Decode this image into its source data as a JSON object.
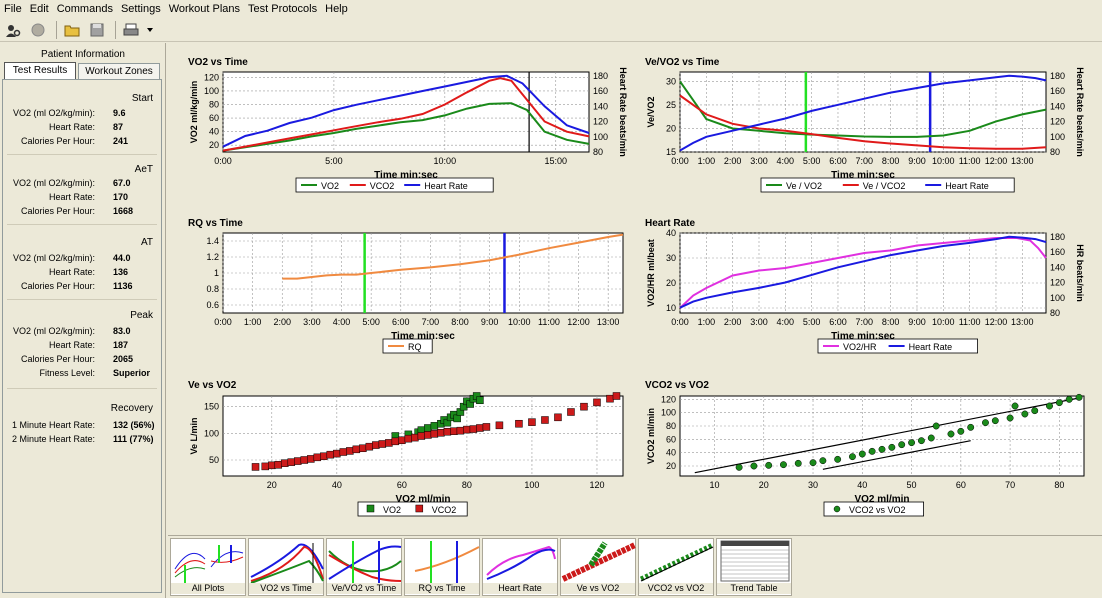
{
  "menu": [
    "File",
    "Edit",
    "Commands",
    "Settings",
    "Workout Plans",
    "Test Protocols",
    "Help"
  ],
  "left": {
    "header": "Patient Information",
    "tabs": [
      "Test Results",
      "Workout Zones"
    ],
    "sections": [
      {
        "title": "Start",
        "rows": [
          {
            "label": "VO2 (ml O2/kg/min):",
            "value": "9.6"
          },
          {
            "label": "Heart Rate:",
            "value": "87"
          },
          {
            "label": "Calories Per Hour:",
            "value": "241"
          }
        ]
      },
      {
        "title": "AeT",
        "rows": [
          {
            "label": "VO2 (ml O2/kg/min):",
            "value": "67.0"
          },
          {
            "label": "Heart Rate:",
            "value": "170"
          },
          {
            "label": "Calories Per Hour:",
            "value": "1668"
          }
        ]
      },
      {
        "title": "AT",
        "rows": [
          {
            "label": "VO2 (ml O2/kg/min):",
            "value": "44.0"
          },
          {
            "label": "Heart Rate:",
            "value": "136"
          },
          {
            "label": "Calories Per Hour:",
            "value": "1136"
          }
        ]
      },
      {
        "title": "Peak",
        "rows": [
          {
            "label": "VO2 (ml O2/kg/min):",
            "value": "83.0"
          },
          {
            "label": "Heart Rate:",
            "value": "187"
          },
          {
            "label": "Calories Per Hour:",
            "value": "2065"
          },
          {
            "label": "Fitness Level:",
            "value": "Superior"
          }
        ]
      },
      {
        "title": "Recovery",
        "rows": [
          {
            "label": "1 Minute Heart Rate:",
            "value": "132 (56%)"
          },
          {
            "label": "2 Minute Heart Rate:",
            "value": "111 (77%)"
          }
        ]
      }
    ]
  },
  "charts": {
    "vo2_time": {
      "title": "VO2 vs Time",
      "xlabel": "Time min:sec",
      "ylabel": "VO2 ml/kg/min",
      "y2label": "Heart Rate beats/min",
      "legend": [
        "VO2",
        "VCO2",
        "Heart Rate"
      ]
    },
    "ve_time": {
      "title": "Ve/VO2 vs Time",
      "xlabel": "Time min:sec",
      "ylabel": "Ve/VO2",
      "y2label": "Heart Rate beats/min",
      "legend": [
        "Ve / VO2",
        "Ve / VCO2",
        "Heart Rate"
      ]
    },
    "rq_time": {
      "title": "RQ vs Time",
      "xlabel": "Time min:sec",
      "legend": [
        "RQ"
      ]
    },
    "hr": {
      "title": "Heart Rate",
      "xlabel": "Time min:sec",
      "ylabel": "VO2/HR ml/beat",
      "y2label": "HR beats/min",
      "legend": [
        "VO2/HR",
        "Heart Rate"
      ]
    },
    "ve_vo2": {
      "title": "Ve vs VO2",
      "xlabel": "VO2 ml/min",
      "ylabel": "Ve L/min",
      "legend": [
        "VO2",
        "VCO2"
      ]
    },
    "vco2_vo2": {
      "title": "VCO2 vs VO2",
      "xlabel": "VO2 ml/min",
      "ylabel": "VCO2 ml/min",
      "legend": [
        "VCO2 vs VO2"
      ]
    }
  },
  "chart_data": [
    {
      "type": "line",
      "title": "VO2 vs Time",
      "xlabel": "Time min:sec",
      "ylabel": "VO2 ml/kg/min",
      "y2label": "Heart Rate beats/min",
      "xlim": [
        0,
        16.5
      ],
      "ylim": [
        10,
        128
      ],
      "y2lim": [
        80,
        185
      ],
      "xticks": [
        "0:00",
        "5:00",
        "10:00",
        "15:00"
      ],
      "yticks": [
        20,
        40,
        60,
        80,
        100,
        120
      ],
      "y2ticks": [
        80,
        100,
        120,
        140,
        160,
        180
      ],
      "series": [
        {
          "name": "VO2",
          "color": "#1a8a1a",
          "x": [
            0,
            1,
            2,
            3,
            4,
            5,
            6,
            7,
            8,
            9,
            10,
            11,
            12,
            13,
            13.7,
            14.5,
            15.5,
            16.5
          ],
          "y": [
            12,
            17,
            22,
            27,
            33,
            38,
            44,
            49,
            54,
            57,
            64,
            74,
            81,
            82,
            72,
            40,
            28,
            22
          ]
        },
        {
          "name": "VCO2",
          "color": "#e01a1a",
          "x": [
            0,
            1,
            2,
            3,
            4,
            5,
            6,
            7,
            8,
            9,
            10,
            11,
            12,
            12.5,
            13,
            13.5,
            14.5,
            15.5,
            16.5
          ],
          "y": [
            12,
            18,
            24,
            30,
            36,
            42,
            48,
            54,
            59,
            66,
            80,
            98,
            115,
            119,
            115,
            95,
            55,
            40,
            33
          ]
        },
        {
          "name": "Heart Rate",
          "color": "#1a1ae0",
          "axis": "y2",
          "x": [
            0,
            1,
            2,
            3,
            4,
            5,
            6,
            7,
            8,
            9,
            10,
            11,
            12,
            12.8,
            13.5,
            14.5,
            15.5,
            16.5
          ],
          "y": [
            87,
            101,
            108,
            118,
            125,
            135,
            142,
            148,
            154,
            160,
            166,
            172,
            178,
            180,
            170,
            140,
            115,
            105
          ]
        }
      ],
      "markers": [
        {
          "x": 13.8,
          "color": "#000"
        }
      ]
    },
    {
      "type": "line",
      "title": "Ve/VO2 vs Time",
      "xlabel": "Time min:sec",
      "ylabel": "Ve/VO2",
      "y2label": "Heart Rate beats/min",
      "xlim": [
        0,
        13.9
      ],
      "ylim": [
        15,
        32
      ],
      "y2lim": [
        80,
        185
      ],
      "xticks": [
        "0:00",
        "1:00",
        "2:00",
        "3:00",
        "4:00",
        "5:00",
        "6:00",
        "7:00",
        "8:00",
        "9:00",
        "10:00",
        "11:00",
        "12:00",
        "13:00"
      ],
      "yticks": [
        15,
        20,
        25,
        30
      ],
      "y2ticks": [
        80,
        100,
        120,
        140,
        160,
        180
      ],
      "series": [
        {
          "name": "Ve / VO2",
          "color": "#1a8a1a",
          "x": [
            0,
            0.5,
            1,
            2,
            3,
            4,
            5,
            6,
            7,
            8,
            9,
            10,
            11,
            12,
            13,
            13.9
          ],
          "y": [
            30,
            26,
            22,
            20,
            19.5,
            19,
            18.7,
            18.5,
            18.3,
            18.2,
            18.2,
            18.5,
            19.5,
            21.5,
            23,
            24
          ]
        },
        {
          "name": "Ve / VCO2",
          "color": "#e01a1a",
          "x": [
            0,
            0.5,
            1,
            2,
            3,
            4,
            5,
            6,
            7,
            8,
            9,
            10,
            11,
            12,
            13,
            13.9
          ],
          "y": [
            27,
            25,
            23,
            21,
            20,
            19.5,
            18.8,
            18,
            17.3,
            16.8,
            16.4,
            16,
            15.8,
            15.7,
            15.7,
            16
          ]
        },
        {
          "name": "Heart Rate",
          "color": "#1a1ae0",
          "axis": "y2",
          "x": [
            0,
            0.5,
            1,
            2,
            3,
            4,
            5,
            6,
            7,
            8,
            9,
            10,
            11,
            12,
            12.5,
            13,
            13.5,
            13.9
          ],
          "y": [
            82,
            92,
            100,
            108,
            116,
            124,
            134,
            142,
            150,
            158,
            164,
            170,
            174,
            178,
            180,
            179,
            177,
            174
          ]
        }
      ],
      "markers": [
        {
          "x": 4.78,
          "color": "#22e022"
        },
        {
          "x": 9.5,
          "color": "#1a1ae0"
        }
      ]
    },
    {
      "type": "line",
      "title": "RQ vs Time",
      "xlabel": "Time min:sec",
      "xlim": [
        0,
        13.5
      ],
      "ylim": [
        0.5,
        1.5
      ],
      "xticks": [
        "0:00",
        "1:00",
        "2:00",
        "3:00",
        "4:00",
        "5:00",
        "6:00",
        "7:00",
        "8:00",
        "9:00",
        "10:00",
        "11:00",
        "12:00",
        "13:00"
      ],
      "yticks": [
        0.6,
        0.8,
        1,
        1.2,
        1.4
      ],
      "series": [
        {
          "name": "RQ",
          "color": "#f08a40",
          "x": [
            2,
            2.5,
            3,
            3.5,
            4,
            4.5,
            5,
            6,
            7,
            8,
            9,
            10,
            11,
            12,
            13,
            13.5
          ],
          "y": [
            0.93,
            0.93,
            0.95,
            0.97,
            0.98,
            0.98,
            1.0,
            1.04,
            1.07,
            1.11,
            1.16,
            1.23,
            1.31,
            1.38,
            1.45,
            1.48
          ]
        }
      ],
      "markers": [
        {
          "x": 4.78,
          "color": "#22e022"
        },
        {
          "x": 9.5,
          "color": "#1a1ae0"
        }
      ]
    },
    {
      "type": "line",
      "title": "Heart Rate",
      "xlabel": "Time min:sec",
      "ylabel": "VO2/HR ml/beat",
      "y2label": "HR beats/min",
      "xlim": [
        0,
        13.9
      ],
      "ylim": [
        8,
        40
      ],
      "y2lim": [
        80,
        185
      ],
      "xticks": [
        "0:00",
        "1:00",
        "2:00",
        "3:00",
        "4:00",
        "5:00",
        "6:00",
        "7:00",
        "8:00",
        "9:00",
        "10:00",
        "11:00",
        "12:00",
        "13:00"
      ],
      "yticks": [
        10,
        20,
        30,
        40
      ],
      "y2ticks": [
        80,
        100,
        120,
        140,
        160,
        180
      ],
      "series": [
        {
          "name": "VO2/HR",
          "color": "#e030e0",
          "x": [
            0,
            0.5,
            1,
            2,
            3,
            4,
            5,
            6,
            7,
            8,
            9,
            10,
            11,
            12,
            12.8,
            13.3,
            13.6,
            13.9
          ],
          "y": [
            10,
            15,
            18,
            23,
            25,
            26,
            28,
            30,
            32,
            33,
            35,
            36,
            37,
            38,
            38,
            37,
            34,
            30
          ]
        },
        {
          "name": "Heart Rate",
          "color": "#1a1ae0",
          "axis": "y2",
          "x": [
            0,
            0.5,
            1,
            2,
            3,
            4,
            5,
            6,
            7,
            8,
            9,
            10,
            11,
            12,
            12.5,
            13,
            13.5,
            13.9
          ],
          "y": [
            87,
            95,
            100,
            107,
            113,
            120,
            130,
            140,
            148,
            156,
            162,
            168,
            172,
            177,
            180,
            179,
            177,
            173
          ]
        }
      ]
    },
    {
      "type": "scatter",
      "title": "Ve vs VO2",
      "xlabel": "VO2 ml/min",
      "ylabel": "Ve L/min",
      "xlim": [
        5,
        128
      ],
      "ylim": [
        20,
        170
      ],
      "xticks": [
        20,
        40,
        60,
        80,
        100,
        120
      ],
      "yticks": [
        50,
        100,
        150
      ],
      "series": [
        {
          "name": "VO2",
          "color": "#1a8a1a",
          "x": [
            58,
            62,
            65,
            66,
            68,
            70,
            72,
            73,
            74,
            75,
            76,
            77,
            78,
            79,
            80,
            81,
            82,
            83,
            84
          ],
          "y": [
            95,
            98,
            102,
            106,
            110,
            114,
            118,
            125,
            120,
            130,
            135,
            128,
            140,
            150,
            160,
            155,
            165,
            170,
            162
          ]
        },
        {
          "name": "VCO2",
          "color": "#cc1a1a",
          "x": [
            15,
            18,
            20,
            22,
            24,
            26,
            28,
            30,
            32,
            34,
            36,
            38,
            40,
            42,
            44,
            46,
            48,
            50,
            52,
            54,
            56,
            58,
            60,
            62,
            64,
            66,
            68,
            70,
            72,
            74,
            76,
            78,
            80,
            82,
            84,
            86,
            90,
            96,
            100,
            104,
            108,
            112,
            116,
            120,
            124,
            126
          ],
          "y": [
            37,
            38,
            40,
            41,
            44,
            46,
            48,
            50,
            52,
            55,
            57,
            60,
            62,
            65,
            67,
            70,
            72,
            75,
            78,
            80,
            82,
            85,
            87,
            90,
            92,
            95,
            97,
            99,
            101,
            103,
            104,
            105,
            107,
            108,
            110,
            112,
            115,
            118,
            121,
            125,
            130,
            140,
            150,
            158,
            165,
            170
          ]
        }
      ]
    },
    {
      "type": "scatter",
      "title": "VCO2 vs VO2",
      "xlabel": "VO2 ml/min",
      "ylabel": "VCO2 ml/min",
      "xlim": [
        3,
        85
      ],
      "ylim": [
        5,
        125
      ],
      "xticks": [
        10,
        20,
        30,
        40,
        50,
        60,
        70,
        80
      ],
      "yticks": [
        20,
        40,
        60,
        80,
        100,
        120
      ],
      "series": [
        {
          "name": "VCO2 vs VO2",
          "color": "#1a8a1a",
          "x": [
            15,
            18,
            21,
            24,
            27,
            30,
            32,
            35,
            38,
            40,
            42,
            44,
            46,
            48,
            50,
            52,
            54,
            55,
            58,
            60,
            62,
            65,
            67,
            70,
            71,
            73,
            75,
            78,
            80,
            82,
            84
          ],
          "y": [
            18,
            20,
            21,
            22,
            24,
            25,
            28,
            30,
            34,
            38,
            42,
            45,
            48,
            52,
            55,
            58,
            62,
            80,
            68,
            72,
            78,
            85,
            88,
            92,
            110,
            98,
            103,
            110,
            115,
            120,
            123
          ]
        }
      ],
      "fit_lines": [
        {
          "x": [
            6,
            84
          ],
          "y": [
            10,
            122
          ]
        },
        {
          "x": [
            32,
            62
          ],
          "y": [
            15,
            58
          ]
        }
      ]
    }
  ],
  "thumbs": [
    "All Plots",
    "VO2 vs Time",
    "Ve/VO2 vs Time",
    "RQ vs Time",
    "Heart Rate",
    "Ve vs VO2",
    "VCO2 vs VO2",
    "Trend Table"
  ]
}
